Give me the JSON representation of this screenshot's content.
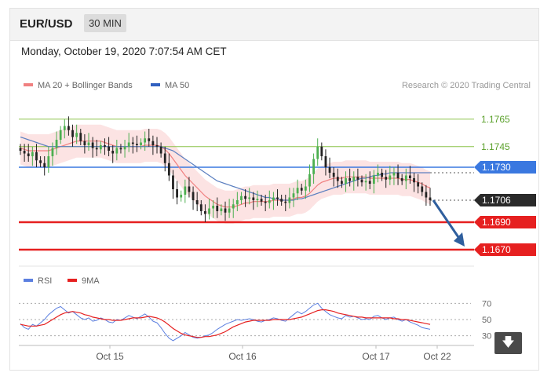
{
  "header": {
    "pair": "EUR/USD",
    "timeframe": "30 MIN"
  },
  "timestamp": "Monday, October 19, 2020 7:07:54 AM CET",
  "legend": {
    "ma20": "MA 20 + Bollinger Bands",
    "ma50": "MA 50",
    "credit": "Research © 2020 Trading Central"
  },
  "rsi_legend": {
    "rsi": "RSI",
    "ma9": "9MA"
  },
  "colors": {
    "up": "#4caf50",
    "down": "#222222",
    "ma20": "#f08080",
    "ma50": "#3060c0",
    "resistance": "#8bc34a",
    "pivot": "#3a78e0",
    "support": "#e62020",
    "last": "#2a2a2a",
    "arrow": "#2f5f9e"
  },
  "chart_data": {
    "type": "candlestick",
    "x_ticks": [
      "Oct 15",
      "Oct 16",
      "Oct 17",
      "Oct 22"
    ],
    "ylim": [
      1.1662,
      1.1782
    ],
    "levels": [
      {
        "value": 1.1765,
        "label": "1.1765",
        "kind": "resistance"
      },
      {
        "value": 1.1745,
        "label": "1.1745",
        "kind": "resistance"
      },
      {
        "value": 1.173,
        "label": "1.1730",
        "kind": "pivot"
      },
      {
        "value": 1.1706,
        "label": "1.1706",
        "kind": "last"
      },
      {
        "value": 1.169,
        "label": "1.1690",
        "kind": "support"
      },
      {
        "value": 1.167,
        "label": "1.1670",
        "kind": "support"
      }
    ],
    "closes": [
      1.1742,
      1.174,
      1.1738,
      1.1741,
      1.1735,
      1.1733,
      1.173,
      1.1738,
      1.1744,
      1.175,
      1.1757,
      1.176,
      1.1757,
      1.1752,
      1.1755,
      1.1749,
      1.1746,
      1.1748,
      1.1744,
      1.1743,
      1.1746,
      1.1745,
      1.1742,
      1.174,
      1.1744,
      1.1743,
      1.1745,
      1.1748,
      1.1747,
      1.1746,
      1.1748,
      1.1751,
      1.1749,
      1.1746,
      1.1745,
      1.174,
      1.1733,
      1.1724,
      1.1714,
      1.1708,
      1.171,
      1.1716,
      1.1712,
      1.1706,
      1.1703,
      1.1698,
      1.1696,
      1.17,
      1.1702,
      1.1698,
      1.17,
      1.1697,
      1.17,
      1.1703,
      1.1706,
      1.1709,
      1.1707,
      1.1708,
      1.1706,
      1.1707,
      1.1705,
      1.1704,
      1.1706,
      1.1708,
      1.1707,
      1.1705,
      1.1704,
      1.1708,
      1.1711,
      1.1715,
      1.1713,
      1.1716,
      1.1725,
      1.1736,
      1.1745,
      1.1738,
      1.173,
      1.1726,
      1.1723,
      1.172,
      1.1718,
      1.1722,
      1.172,
      1.1723,
      1.1721,
      1.1719,
      1.172,
      1.1718,
      1.1724,
      1.1726,
      1.1723,
      1.1721,
      1.1724,
      1.1726,
      1.1722,
      1.172,
      1.1724,
      1.1722,
      1.1719,
      1.1716,
      1.1712,
      1.1708,
      1.1706
    ],
    "ma20": [
      1.1744,
      1.1743,
      1.1742,
      1.1742,
      1.1742,
      1.1742,
      1.1742,
      1.1742,
      1.1743,
      1.1744,
      1.1745,
      1.1746,
      1.1747,
      1.1748,
      1.1749,
      1.1749,
      1.1749,
      1.1749,
      1.1749,
      1.1749,
      1.1749,
      1.1748,
      1.1747,
      1.1746,
      1.1745,
      1.1745,
      1.1745,
      1.1745,
      1.1745,
      1.1745,
      1.1745,
      1.1746,
      1.1746,
      1.1746,
      1.1746,
      1.1745,
      1.1743,
      1.174,
      1.1736,
      1.1732,
      1.1728,
      1.1724,
      1.1721,
      1.1718,
      1.1715,
      1.1712,
      1.1709,
      1.1707,
      1.1705,
      1.1703,
      1.1702,
      1.1701,
      1.1701,
      1.1701,
      1.1702,
      1.1703,
      1.1704,
      1.1704,
      1.1705,
      1.1705,
      1.1705,
      1.1705,
      1.1705,
      1.1706,
      1.1706,
      1.1706,
      1.1706,
      1.1706,
      1.1707,
      1.1708,
      1.1708,
      1.1709,
      1.1711,
      1.1714,
      1.1717,
      1.1719,
      1.172,
      1.1721,
      1.1722,
      1.1722,
      1.1722,
      1.1723,
      1.1723,
      1.1723,
      1.1723,
      1.1723,
      1.1723,
      1.1722,
      1.1722,
      1.1722,
      1.1722,
      1.1722,
      1.1722,
      1.1722,
      1.1722,
      1.1721,
      1.1721,
      1.1721,
      1.172,
      1.1719,
      1.1718,
      1.1716,
      1.1715
    ],
    "ma50": [
      1.1752,
      1.1751,
      1.175,
      1.1749,
      1.1748,
      1.1747,
      1.1746,
      1.1745,
      1.1745,
      1.1745,
      1.1745,
      1.1745,
      1.1745,
      1.1745,
      1.1745,
      1.1745,
      1.1745,
      1.1745,
      1.1745,
      1.1745,
      1.1745,
      1.1745,
      1.1745,
      1.1745,
      1.1745,
      1.1745,
      1.1745,
      1.1745,
      1.1745,
      1.1745,
      1.1745,
      1.1745,
      1.1745,
      1.1745,
      1.1745,
      1.1745,
      1.1744,
      1.1743,
      1.1742,
      1.174,
      1.1738,
      1.1736,
      1.1734,
      1.1732,
      1.173,
      1.1728,
      1.1726,
      1.1724,
      1.1722,
      1.172,
      1.1719,
      1.1718,
      1.1717,
      1.1716,
      1.1715,
      1.1714,
      1.1713,
      1.1712,
      1.1711,
      1.171,
      1.1709,
      1.1708,
      1.1708,
      1.1707,
      1.1707,
      1.1706,
      1.1706,
      1.1706,
      1.1706,
      1.1707,
      1.1707,
      1.1708,
      1.1709,
      1.171,
      1.1711,
      1.1712,
      1.1713,
      1.1714,
      1.1715,
      1.1716,
      1.1717,
      1.1718,
      1.1719,
      1.172,
      1.1721,
      1.1722,
      1.1722,
      1.1723,
      1.1724,
      1.1724,
      1.1725,
      1.1725,
      1.1726,
      1.1726,
      1.1726,
      1.1726,
      1.1726,
      1.1726,
      1.1726,
      1.1726,
      1.1726,
      1.1726,
      1.1726
    ],
    "bb_width": 0.0012,
    "forecast": {
      "from": 1.1706,
      "to": 1.167
    },
    "rsi": {
      "ylim": [
        20,
        80
      ],
      "ticks": [
        70,
        50,
        30
      ],
      "values": [
        45,
        40,
        38,
        44,
        42,
        46,
        50,
        56,
        60,
        64,
        66,
        62,
        58,
        60,
        56,
        52,
        50,
        52,
        48,
        49,
        52,
        50,
        47,
        46,
        50,
        49,
        52,
        55,
        53,
        51,
        54,
        57,
        53,
        48,
        46,
        40,
        33,
        27,
        24,
        27,
        30,
        34,
        31,
        28,
        27,
        28,
        30,
        31,
        34,
        38,
        41,
        44,
        46,
        48,
        50,
        49,
        50,
        51,
        50,
        48,
        47,
        49,
        50,
        52,
        51,
        49,
        48,
        52,
        56,
        60,
        57,
        60,
        64,
        68,
        70,
        64,
        60,
        56,
        54,
        52,
        51,
        55,
        53,
        54,
        52,
        50,
        51,
        50,
        54,
        55,
        52,
        50,
        52,
        53,
        50,
        48,
        50,
        47,
        45,
        43,
        40,
        39,
        38
      ],
      "ma9": [
        44,
        43,
        42,
        42,
        42,
        43,
        44,
        47,
        50,
        53,
        56,
        58,
        59,
        60,
        59,
        58,
        56,
        55,
        53,
        52,
        51,
        50,
        50,
        49,
        49,
        49,
        50,
        51,
        52,
        52,
        52,
        53,
        54,
        53,
        52,
        50,
        47,
        43,
        39,
        36,
        33,
        31,
        30,
        29,
        28,
        28,
        29,
        29,
        30,
        31,
        33,
        35,
        38,
        41,
        43,
        45,
        47,
        48,
        49,
        49,
        49,
        49,
        49,
        50,
        50,
        50,
        50,
        50,
        51,
        52,
        53,
        55,
        57,
        59,
        61,
        62,
        62,
        61,
        60,
        58,
        57,
        56,
        55,
        54,
        53,
        53,
        52,
        52,
        52,
        52,
        52,
        52,
        52,
        51,
        51,
        50,
        50,
        49,
        48,
        47,
        46,
        45,
        44
      ]
    }
  }
}
